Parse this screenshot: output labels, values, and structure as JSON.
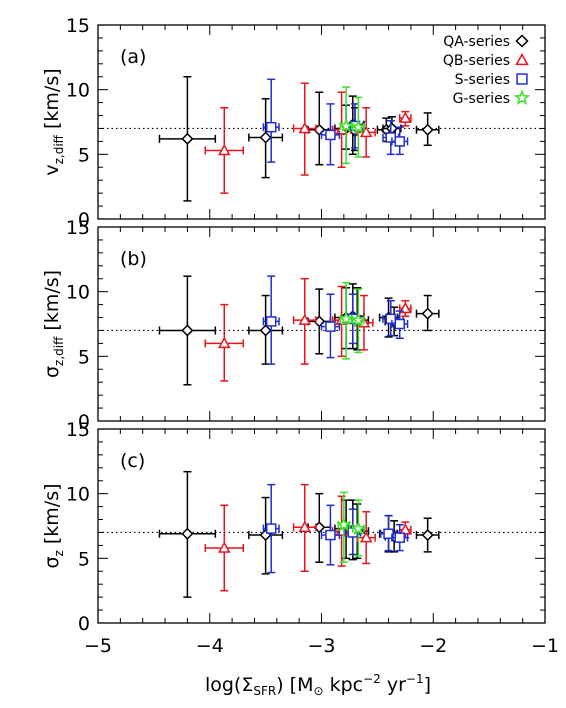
{
  "colors": {
    "QA": "#000000",
    "QB": "#e8141c",
    "S": "#1f2ed0",
    "G": "#3de02b"
  },
  "markers": {
    "QA": "diamond",
    "QB": "triangle",
    "S": "square",
    "G": "star"
  },
  "chart_data": [
    {
      "type": "scatter",
      "panel_label": "(a)",
      "ylabel_main": "v",
      "ylabel_sub": "z,diff",
      "ylabel_unit": " [km/s]",
      "reference_line": 7,
      "xlim": [
        -5,
        -1
      ],
      "ylim": [
        0,
        15
      ],
      "yticks": [
        "0",
        "5",
        "10",
        "15"
      ],
      "legend_placement": "top-right",
      "series": [
        {
          "name": "QA-series",
          "key": "QA",
          "points": [
            {
              "x": -4.2,
              "y": 6.2,
              "xerr": 0.25,
              "ylo": 1.4,
              "yhi": 11.0
            },
            {
              "x": -3.5,
              "y": 6.3,
              "xerr": 0.15,
              "ylo": 3.2,
              "yhi": 9.3
            },
            {
              "x": -3.02,
              "y": 6.9,
              "xerr": 0.1,
              "ylo": 4.2,
              "yhi": 9.8
            },
            {
              "x": -2.78,
              "y": 7.0,
              "xerr": 0.1,
              "ylo": 5.4,
              "yhi": 8.8
            },
            {
              "x": -2.72,
              "y": 7.3,
              "xerr": 0.1,
              "ylo": 5.0,
              "yhi": 9.5
            },
            {
              "x": -2.7,
              "y": 6.8,
              "xerr": 0.1,
              "ylo": 5.3,
              "yhi": 8.6
            },
            {
              "x": -2.42,
              "y": 6.9,
              "xerr": 0.08,
              "ylo": 6.0,
              "yhi": 7.8
            },
            {
              "x": -2.37,
              "y": 7.0,
              "xerr": 0.08,
              "ylo": 6.2,
              "yhi": 7.9
            },
            {
              "x": -2.05,
              "y": 6.9,
              "xerr": 0.1,
              "ylo": 5.7,
              "yhi": 8.2
            }
          ]
        },
        {
          "name": "QB-series",
          "key": "QB",
          "points": [
            {
              "x": -3.87,
              "y": 5.3,
              "xerr": 0.17,
              "ylo": 2.0,
              "yhi": 8.6
            },
            {
              "x": -3.15,
              "y": 7.0,
              "xerr": 0.1,
              "ylo": 3.4,
              "yhi": 10.5
            },
            {
              "x": -2.82,
              "y": 6.9,
              "xerr": 0.08,
              "ylo": 4.0,
              "yhi": 9.8
            },
            {
              "x": -2.6,
              "y": 6.7,
              "xerr": 0.08,
              "ylo": 4.8,
              "yhi": 8.6
            },
            {
              "x": -2.25,
              "y": 7.8,
              "xerr": 0.05,
              "ylo": 7.2,
              "yhi": 8.3
            }
          ]
        },
        {
          "name": "S-series",
          "key": "S",
          "points": [
            {
              "x": -3.45,
              "y": 7.1,
              "xerr": 0.07,
              "ylo": 4.4,
              "yhi": 10.8
            },
            {
              "x": -2.92,
              "y": 6.5,
              "xerr": 0.08,
              "ylo": 4.2,
              "yhi": 8.9
            },
            {
              "x": -2.7,
              "y": 7.2,
              "xerr": 0.07,
              "ylo": 5.5,
              "yhi": 8.9
            },
            {
              "x": -2.38,
              "y": 6.3,
              "xerr": 0.07,
              "ylo": 5.0,
              "yhi": 7.6
            },
            {
              "x": -2.3,
              "y": 6.0,
              "xerr": 0.07,
              "ylo": 5.0,
              "yhi": 7.1
            }
          ]
        },
        {
          "name": "G-series",
          "key": "G",
          "points": [
            {
              "x": -2.78,
              "y": 7.2,
              "xerr": 0.05,
              "ylo": 4.3,
              "yhi": 10.2
            },
            {
              "x": -2.67,
              "y": 7.1,
              "xerr": 0.05,
              "ylo": 4.8,
              "yhi": 9.4
            }
          ]
        }
      ]
    },
    {
      "type": "scatter",
      "panel_label": "(b)",
      "ylabel_main": "σ",
      "ylabel_sub": "z,diff",
      "ylabel_unit": " [km/s]",
      "reference_line": 7,
      "xlim": [
        -5,
        -1
      ],
      "ylim": [
        0,
        15
      ],
      "yticks": [
        "0",
        "5",
        "10",
        "15"
      ],
      "series": [
        {
          "name": "QA-series",
          "key": "QA",
          "points": [
            {
              "x": -4.2,
              "y": 7.0,
              "xerr": 0.25,
              "ylo": 2.8,
              "yhi": 11.2
            },
            {
              "x": -3.5,
              "y": 7.0,
              "xerr": 0.15,
              "ylo": 4.4,
              "yhi": 9.7
            },
            {
              "x": -3.02,
              "y": 7.7,
              "xerr": 0.1,
              "ylo": 5.2,
              "yhi": 10.2
            },
            {
              "x": -2.78,
              "y": 8.0,
              "xerr": 0.1,
              "ylo": 5.6,
              "yhi": 10.3
            },
            {
              "x": -2.72,
              "y": 8.1,
              "xerr": 0.1,
              "ylo": 5.6,
              "yhi": 10.6
            },
            {
              "x": -2.68,
              "y": 7.8,
              "xerr": 0.1,
              "ylo": 5.5,
              "yhi": 10.3
            },
            {
              "x": -2.4,
              "y": 8.0,
              "xerr": 0.08,
              "ylo": 6.5,
              "yhi": 9.5
            },
            {
              "x": -2.35,
              "y": 7.7,
              "xerr": 0.08,
              "ylo": 6.6,
              "yhi": 8.8
            },
            {
              "x": -2.05,
              "y": 8.3,
              "xerr": 0.1,
              "ylo": 7.0,
              "yhi": 9.7
            }
          ]
        },
        {
          "name": "QB-series",
          "key": "QB",
          "points": [
            {
              "x": -3.87,
              "y": 6.0,
              "xerr": 0.17,
              "ylo": 3.1,
              "yhi": 9.0
            },
            {
              "x": -3.15,
              "y": 7.8,
              "xerr": 0.1,
              "ylo": 4.4,
              "yhi": 11.0
            },
            {
              "x": -2.82,
              "y": 7.8,
              "xerr": 0.08,
              "ylo": 5.0,
              "yhi": 10.4
            },
            {
              "x": -2.62,
              "y": 7.6,
              "xerr": 0.08,
              "ylo": 5.5,
              "yhi": 9.7
            },
            {
              "x": -2.25,
              "y": 8.7,
              "xerr": 0.05,
              "ylo": 8.1,
              "yhi": 9.3
            }
          ]
        },
        {
          "name": "S-series",
          "key": "S",
          "points": [
            {
              "x": -3.45,
              "y": 7.7,
              "xerr": 0.07,
              "ylo": 4.4,
              "yhi": 11.2
            },
            {
              "x": -2.92,
              "y": 7.3,
              "xerr": 0.08,
              "ylo": 4.9,
              "yhi": 9.8
            },
            {
              "x": -2.72,
              "y": 7.9,
              "xerr": 0.07,
              "ylo": 6.0,
              "yhi": 9.8
            },
            {
              "x": -2.38,
              "y": 7.9,
              "xerr": 0.07,
              "ylo": 6.6,
              "yhi": 9.3
            },
            {
              "x": -2.3,
              "y": 7.5,
              "xerr": 0.07,
              "ylo": 6.4,
              "yhi": 8.5
            }
          ]
        },
        {
          "name": "G-series",
          "key": "G",
          "points": [
            {
              "x": -2.78,
              "y": 7.9,
              "xerr": 0.05,
              "ylo": 4.8,
              "yhi": 10.7
            },
            {
              "x": -2.67,
              "y": 7.8,
              "xerr": 0.05,
              "ylo": 5.3,
              "yhi": 10.2
            }
          ]
        }
      ]
    },
    {
      "type": "scatter",
      "panel_label": "(c)",
      "ylabel_main": "σ",
      "ylabel_sub": "z",
      "ylabel_unit": " [km/s]",
      "reference_line": 7,
      "xlim": [
        -5,
        -1
      ],
      "ylim": [
        0,
        15
      ],
      "yticks": [
        "0",
        "5",
        "10",
        "15"
      ],
      "series": [
        {
          "name": "QA-series",
          "key": "QA",
          "points": [
            {
              "x": -4.2,
              "y": 6.9,
              "xerr": 0.25,
              "ylo": 2.0,
              "yhi": 11.7
            },
            {
              "x": -3.5,
              "y": 6.8,
              "xerr": 0.15,
              "ylo": 3.8,
              "yhi": 9.7
            },
            {
              "x": -3.02,
              "y": 7.4,
              "xerr": 0.1,
              "ylo": 4.7,
              "yhi": 10.0
            },
            {
              "x": -2.78,
              "y": 7.3,
              "xerr": 0.1,
              "ylo": 5.0,
              "yhi": 9.5
            },
            {
              "x": -2.72,
              "y": 7.2,
              "xerr": 0.1,
              "ylo": 4.9,
              "yhi": 9.5
            },
            {
              "x": -2.68,
              "y": 7.1,
              "xerr": 0.1,
              "ylo": 5.0,
              "yhi": 9.2
            },
            {
              "x": -2.4,
              "y": 6.9,
              "xerr": 0.08,
              "ylo": 5.5,
              "yhi": 8.3
            },
            {
              "x": -2.35,
              "y": 6.7,
              "xerr": 0.08,
              "ylo": 5.5,
              "yhi": 7.9
            },
            {
              "x": -2.05,
              "y": 6.8,
              "xerr": 0.1,
              "ylo": 5.5,
              "yhi": 8.1
            }
          ]
        },
        {
          "name": "QB-series",
          "key": "QB",
          "points": [
            {
              "x": -3.87,
              "y": 5.8,
              "xerr": 0.17,
              "ylo": 2.5,
              "yhi": 9.1
            },
            {
              "x": -3.15,
              "y": 7.4,
              "xerr": 0.1,
              "ylo": 4.0,
              "yhi": 10.7
            },
            {
              "x": -2.82,
              "y": 7.1,
              "xerr": 0.08,
              "ylo": 4.4,
              "yhi": 9.8
            },
            {
              "x": -2.6,
              "y": 6.6,
              "xerr": 0.08,
              "ylo": 4.6,
              "yhi": 8.6
            },
            {
              "x": -2.25,
              "y": 7.2,
              "xerr": 0.05,
              "ylo": 6.6,
              "yhi": 7.8
            }
          ]
        },
        {
          "name": "S-series",
          "key": "S",
          "points": [
            {
              "x": -3.45,
              "y": 7.3,
              "xerr": 0.07,
              "ylo": 3.9,
              "yhi": 10.7
            },
            {
              "x": -2.92,
              "y": 6.8,
              "xerr": 0.08,
              "ylo": 4.5,
              "yhi": 9.1
            },
            {
              "x": -2.72,
              "y": 7.0,
              "xerr": 0.07,
              "ylo": 5.3,
              "yhi": 8.8
            },
            {
              "x": -2.4,
              "y": 6.9,
              "xerr": 0.07,
              "ylo": 5.6,
              "yhi": 8.3
            },
            {
              "x": -2.3,
              "y": 6.6,
              "xerr": 0.07,
              "ylo": 5.6,
              "yhi": 7.6
            }
          ]
        },
        {
          "name": "G-series",
          "key": "G",
          "points": [
            {
              "x": -2.8,
              "y": 7.6,
              "xerr": 0.05,
              "ylo": 4.7,
              "yhi": 10.1
            },
            {
              "x": -2.67,
              "y": 7.3,
              "xerr": 0.05,
              "ylo": 5.2,
              "yhi": 9.5
            }
          ]
        }
      ]
    }
  ],
  "xaxis": {
    "ticks": [
      "−5",
      "−4",
      "−3",
      "−2",
      "−1"
    ],
    "title_main": "log(Σ",
    "title_sub": "SFR",
    "title_mid": ") [M",
    "title_sun": "⊙",
    "title_kpc": " kpc",
    "title_kpc_exp": "−2",
    "title_yr": " yr",
    "title_yr_exp": "−1",
    "title_end": "]"
  }
}
